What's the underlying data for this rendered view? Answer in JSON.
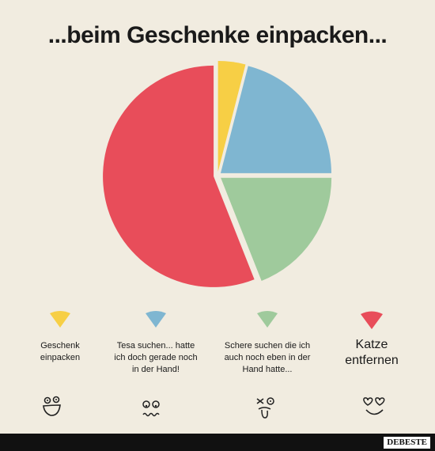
{
  "title": "...beim Geschenke einpacken...",
  "chart_data": {
    "type": "pie",
    "slices": [
      {
        "label": "Geschenk einpacken",
        "value": 4,
        "color": "#f7cf45"
      },
      {
        "label": "Tesa suchen... hatte ich doch gerade noch in der Hand!",
        "value": 21,
        "color": "#7fb6d1"
      },
      {
        "label": "Schere suchen die ich auch noch eben in der Hand hatte...",
        "value": 19,
        "color": "#9fca9c"
      },
      {
        "label": "Katze entfernen",
        "value": 56,
        "color": "#e84d5a"
      }
    ],
    "legend_position": "bottom"
  },
  "legend": [
    {
      "label": "Geschenk einpacken"
    },
    {
      "label": "Tesa suchen... hatte ich doch gerade noch in der Hand!"
    },
    {
      "label": "Schere suchen die ich auch noch eben in der Hand hatte..."
    },
    {
      "label": "Katze entfernen"
    }
  ],
  "footer": {
    "logo": "DEBESTE"
  }
}
